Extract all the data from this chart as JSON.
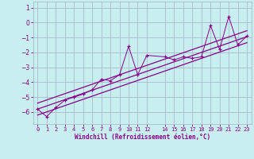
{
  "xlabel": "Windchill (Refroidissement éolien,°C)",
  "bg_color": "#c8eef0",
  "grid_color": "#aabbcc",
  "line_color": "#880088",
  "xlim": [
    -0.5,
    23.5
  ],
  "ylim": [
    -6.8,
    1.4
  ],
  "y_ticks": [
    -6,
    -5,
    -4,
    -3,
    -2,
    -1,
    0,
    1
  ],
  "x_ticks": [
    0,
    1,
    2,
    3,
    4,
    5,
    6,
    7,
    8,
    9,
    10,
    11,
    12,
    14,
    15,
    16,
    17,
    18,
    19,
    20,
    21,
    22,
    23
  ],
  "data_x": [
    0,
    1,
    2,
    3,
    4,
    5,
    6,
    7,
    8,
    9,
    10,
    11,
    12,
    14,
    15,
    16,
    17,
    18,
    19,
    20,
    21,
    22,
    23
  ],
  "data_y": [
    -5.8,
    -6.3,
    -5.7,
    -5.2,
    -5.0,
    -4.8,
    -4.5,
    -3.8,
    -3.9,
    -3.5,
    -1.6,
    -3.5,
    -2.2,
    -2.3,
    -2.5,
    -2.3,
    -2.4,
    -2.3,
    -0.2,
    -1.8,
    0.4,
    -1.5,
    -0.9
  ],
  "trend_upper": [
    -5.4,
    -0.55
  ],
  "trend_mid": [
    -5.8,
    -0.95
  ],
  "trend_lower": [
    -6.2,
    -1.35
  ]
}
